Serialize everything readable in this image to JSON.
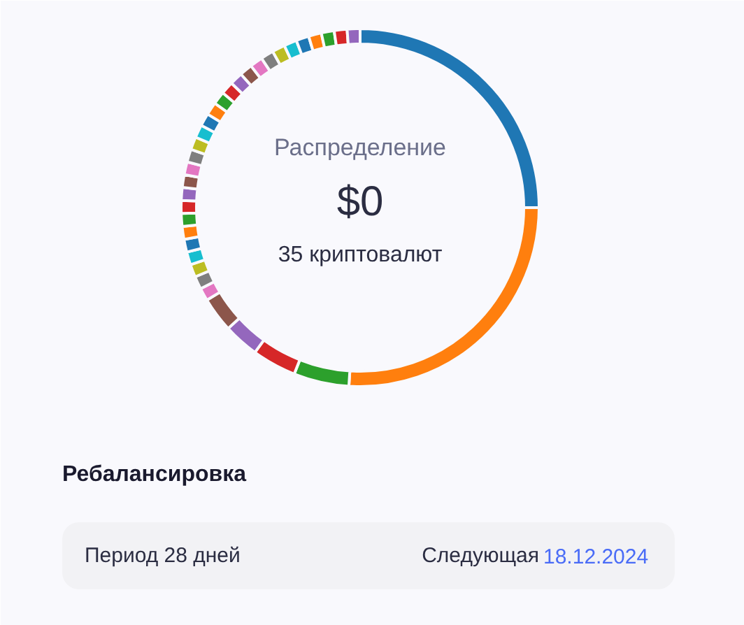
{
  "chart_data": {
    "type": "donut",
    "title": "Распределение",
    "subtitle": "$0",
    "annotations": [
      "35 криптовалют",
      "Ребалансировка",
      "Период 28 дней",
      "Следующая",
      "18.12.2024"
    ],
    "categories": [
      null,
      null,
      null,
      null,
      null,
      null,
      null,
      null,
      null,
      null,
      null,
      null,
      null,
      null,
      null,
      null,
      null,
      null,
      null,
      null,
      null,
      null,
      null,
      null,
      null,
      null,
      null,
      null,
      null,
      null,
      null,
      null,
      null,
      null,
      null
    ],
    "values": [
      25,
      26,
      5,
      4,
      3.2,
      3.16,
      1.16,
      1.16,
      1.16,
      1.16,
      1.16,
      1.16,
      1.16,
      1.16,
      1.16,
      1.16,
      1.16,
      1.16,
      1.16,
      1.16,
      1.16,
      1.16,
      1.16,
      1.16,
      1.16,
      1.16,
      1.16,
      1.16,
      1.16,
      1.16,
      1.16,
      1.16,
      1.16,
      1.16,
      1.16
    ],
    "colors": [
      "#1f77b4",
      "#ff7f0e",
      "#2ca02c",
      "#d62728",
      "#9467bd",
      "#8c564b",
      "#e377c2",
      "#7f7f7f",
      "#bcbd22",
      "#17becf",
      "#1f77b4",
      "#ff7f0e",
      "#2ca02c",
      "#d62728",
      "#9467bd",
      "#8c564b",
      "#e377c2",
      "#7f7f7f",
      "#bcbd22",
      "#17becf",
      "#1f77b4",
      "#ff7f0e",
      "#2ca02c",
      "#d62728",
      "#9467bd",
      "#8c564b",
      "#e377c2",
      "#7f7f7f",
      "#bcbd22",
      "#17becf",
      "#1f77b4",
      "#ff7f0e",
      "#2ca02c",
      "#d62728",
      "#9467bd"
    ]
  }
}
